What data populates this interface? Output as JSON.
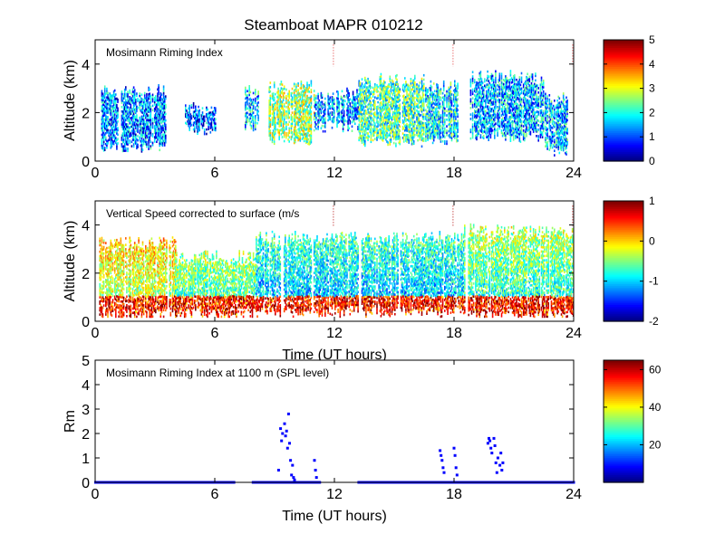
{
  "figure_title": "Steamboat MAPR 010212",
  "chart_data": [
    {
      "type": "heatmap",
      "panel_label": "Mosimann Riming Index",
      "xlabel": "",
      "ylabel": "Altitude (km)",
      "xlim": [
        0,
        24
      ],
      "ylim": [
        0,
        5
      ],
      "xticks": [
        0,
        6,
        12,
        18,
        24
      ],
      "yticks": [
        0,
        2,
        4
      ],
      "colorbar": {
        "min": 0,
        "max": 5,
        "ticks": [
          0,
          1,
          2,
          3,
          4,
          5
        ]
      },
      "segments": [
        {
          "x0": 0.3,
          "x1": 3.5,
          "lo": 0.6,
          "hi": 2.8,
          "v": 1.3
        },
        {
          "x0": 4.5,
          "x1": 6.0,
          "lo": 1.3,
          "hi": 2.1,
          "v": 1.1
        },
        {
          "x0": 7.5,
          "x1": 8.2,
          "lo": 1.4,
          "hi": 2.8,
          "v": 1.6
        },
        {
          "x0": 8.7,
          "x1": 11.0,
          "lo": 0.9,
          "hi": 3.0,
          "v": 2.6
        },
        {
          "x0": 11.0,
          "x1": 13.2,
          "lo": 1.4,
          "hi": 2.7,
          "v": 1.4
        },
        {
          "x0": 13.2,
          "x1": 16.5,
          "lo": 0.8,
          "hi": 3.3,
          "v": 2.2
        },
        {
          "x0": 16.5,
          "x1": 18.2,
          "lo": 0.9,
          "hi": 3.0,
          "v": 1.8
        },
        {
          "x0": 18.8,
          "x1": 22.5,
          "lo": 1.0,
          "hi": 3.4,
          "v": 1.5
        },
        {
          "x0": 22.5,
          "x1": 23.7,
          "lo": 0.4,
          "hi": 2.5,
          "v": 1.6
        }
      ]
    },
    {
      "type": "heatmap",
      "panel_label": "Vertical Speed corrected to surface (m/s",
      "xlabel": "Time (UT hours)",
      "ylabel": "Altitude (km)",
      "xlim": [
        0,
        24
      ],
      "ylim": [
        0,
        5
      ],
      "xticks": [
        0,
        6,
        12,
        18,
        24
      ],
      "yticks": [
        0,
        2,
        4
      ],
      "colorbar": {
        "min": -2,
        "max": 1,
        "ticks": [
          1,
          0,
          -1,
          -2
        ]
      },
      "segments": [
        {
          "x0": 0.2,
          "x1": 4.0,
          "lo": 0.3,
          "hi": 3.2,
          "v": -0.2
        },
        {
          "x0": 4.0,
          "x1": 8.0,
          "lo": 0.3,
          "hi": 2.6,
          "v": -0.5
        },
        {
          "x0": 8.0,
          "x1": 13.5,
          "lo": 0.4,
          "hi": 3.4,
          "v": -0.9
        },
        {
          "x0": 13.5,
          "x1": 18.5,
          "lo": 0.4,
          "hi": 3.4,
          "v": -0.9
        },
        {
          "x0": 18.5,
          "x1": 24.0,
          "lo": 0.3,
          "hi": 3.7,
          "v": -0.6
        }
      ]
    },
    {
      "type": "scatter",
      "panel_label": "Mosimann Riming Index at 1100 m (SPL level)",
      "xlabel": "Time (UT hours)",
      "ylabel": "Rm",
      "xlim": [
        0,
        24
      ],
      "ylim": [
        0,
        5
      ],
      "xticks": [
        0,
        6,
        12,
        18,
        24
      ],
      "yticks": [
        0,
        1,
        2,
        3,
        4,
        5
      ],
      "colorbar": {
        "min": 0,
        "max": 65,
        "ticks": [
          60,
          40,
          20
        ]
      },
      "baseline_x_ranges": [
        [
          0,
          7.0
        ],
        [
          7.9,
          11.3
        ],
        [
          13.2,
          24
        ]
      ],
      "points": [
        [
          9.2,
          0.5
        ],
        [
          9.3,
          2.2
        ],
        [
          9.35,
          1.7
        ],
        [
          9.4,
          2.0
        ],
        [
          9.5,
          2.4
        ],
        [
          9.55,
          1.9
        ],
        [
          9.6,
          2.1
        ],
        [
          9.65,
          1.4
        ],
        [
          9.7,
          2.8
        ],
        [
          9.75,
          1.6
        ],
        [
          9.8,
          0.9
        ],
        [
          9.85,
          0.3
        ],
        [
          9.9,
          0.7
        ],
        [
          9.95,
          0.2
        ],
        [
          10.0,
          0.1
        ],
        [
          11.0,
          0.9
        ],
        [
          11.05,
          0.5
        ],
        [
          11.1,
          0.2
        ],
        [
          17.3,
          1.3
        ],
        [
          17.35,
          1.1
        ],
        [
          17.4,
          0.9
        ],
        [
          17.45,
          0.6
        ],
        [
          17.5,
          0.4
        ],
        [
          18.0,
          1.4
        ],
        [
          18.05,
          1.1
        ],
        [
          18.1,
          0.6
        ],
        [
          18.15,
          0.3
        ],
        [
          19.7,
          1.6
        ],
        [
          19.75,
          1.8
        ],
        [
          19.8,
          1.7
        ],
        [
          19.85,
          1.4
        ],
        [
          19.9,
          1.2
        ],
        [
          20.0,
          1.8
        ],
        [
          20.05,
          1.5
        ],
        [
          20.1,
          0.8
        ],
        [
          20.15,
          0.4
        ],
        [
          20.2,
          1.0
        ],
        [
          20.3,
          0.7
        ],
        [
          20.35,
          1.2
        ],
        [
          20.4,
          0.5
        ],
        [
          20.45,
          0.8
        ]
      ]
    }
  ]
}
